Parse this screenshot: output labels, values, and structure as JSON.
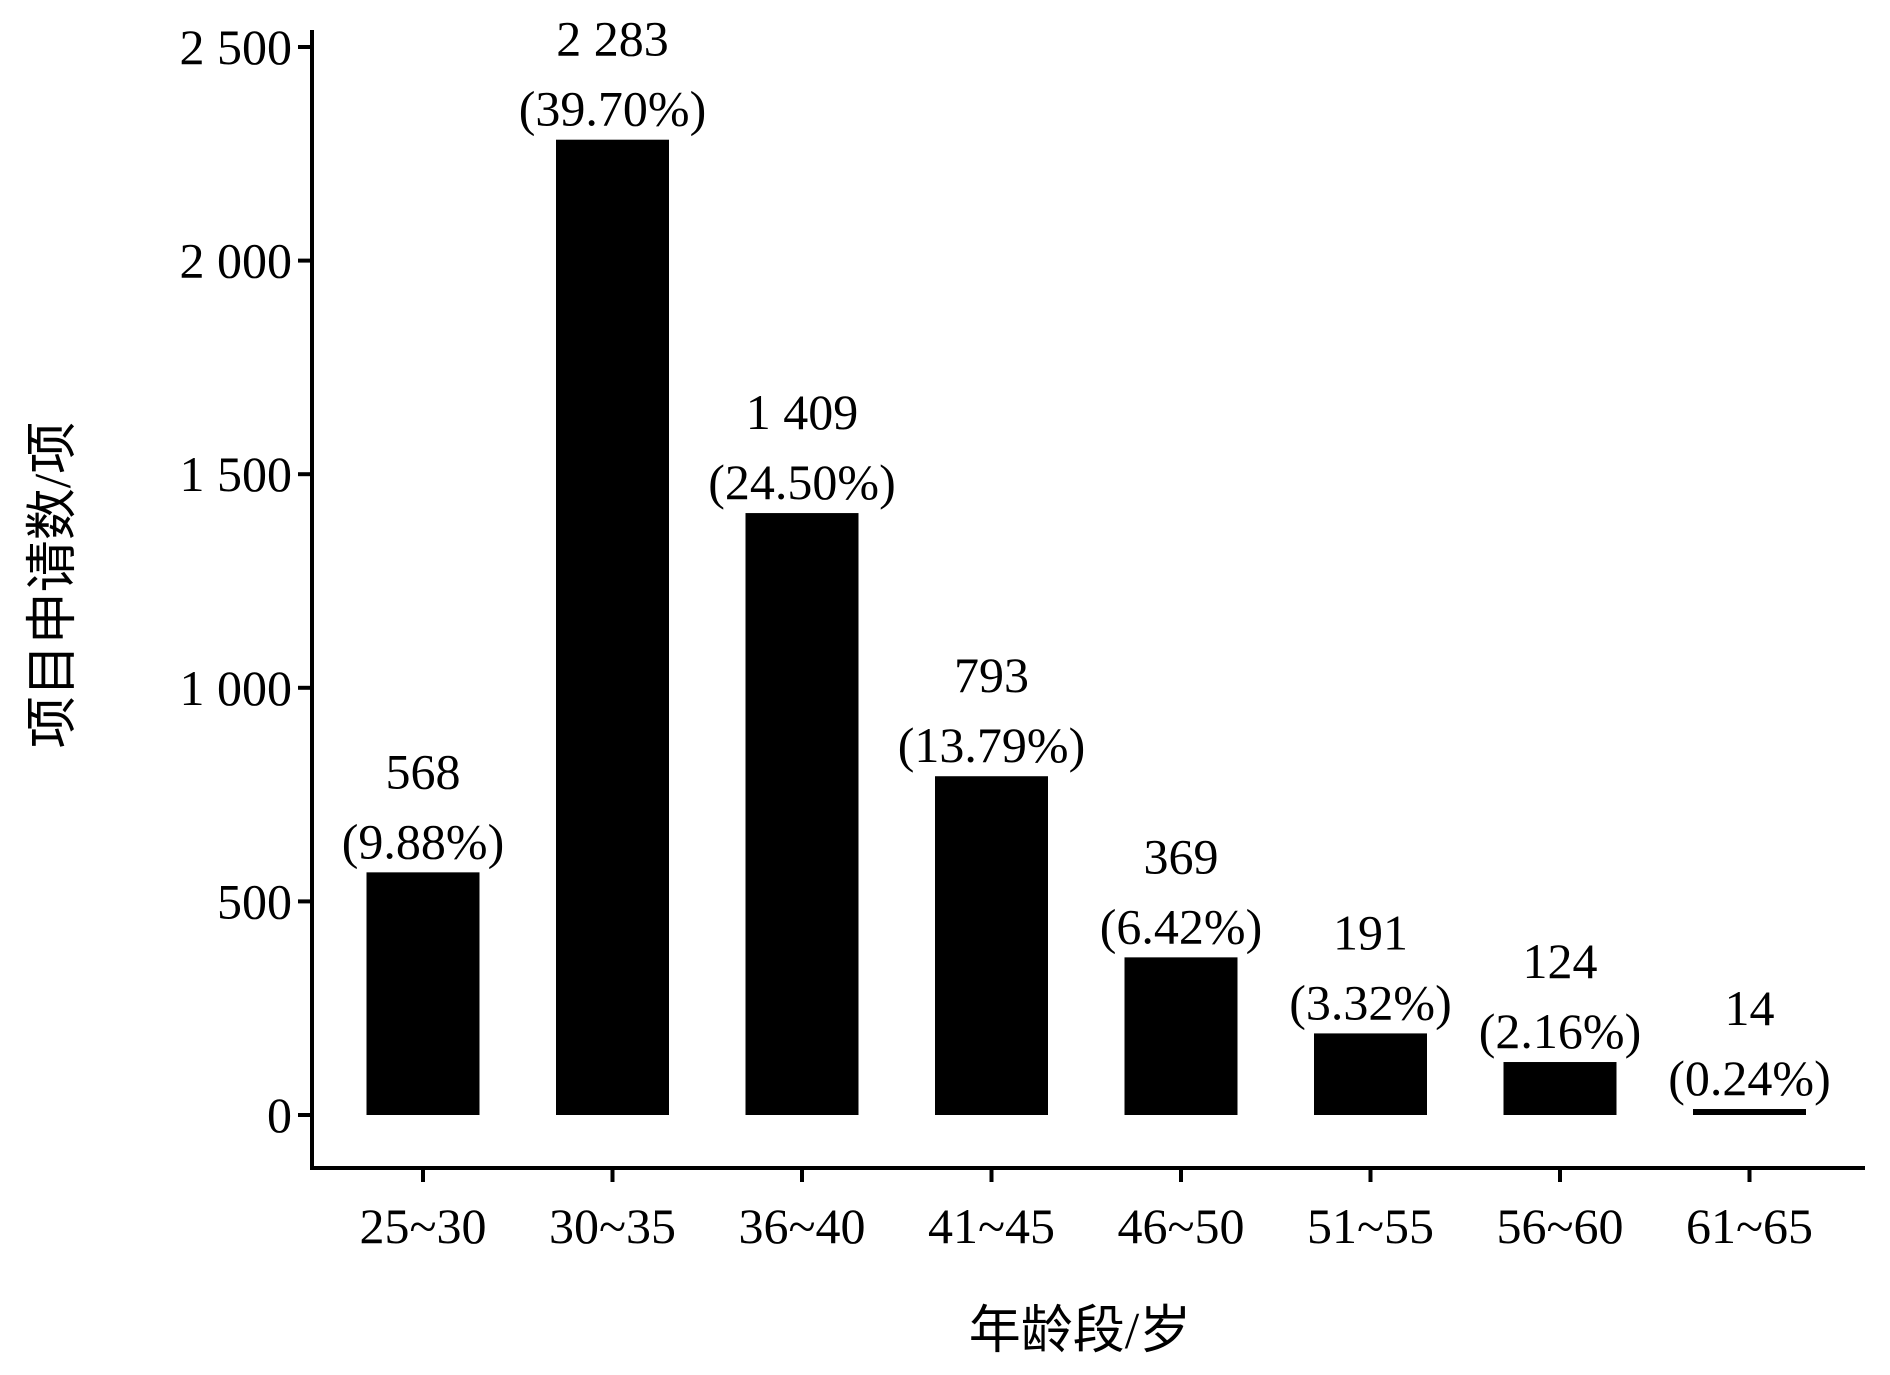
{
  "chart_data": {
    "type": "bar",
    "title": "",
    "xlabel": "年龄段/岁",
    "ylabel": "项目申请数/项",
    "ylim": [
      0,
      2500
    ],
    "yticks": [
      0,
      500,
      1000,
      1500,
      2000,
      2500
    ],
    "ytick_labels": [
      "0",
      "500",
      "1 000",
      "1 500",
      "2 000",
      "2 500"
    ],
    "categories": [
      "25~30",
      "30~35",
      "36~40",
      "41~45",
      "46~50",
      "51~55",
      "56~60",
      "61~65"
    ],
    "values": [
      568,
      2283,
      1409,
      793,
      369,
      191,
      124,
      14
    ],
    "value_labels": [
      "568",
      "2 283",
      "1 409",
      "793",
      "369",
      "191",
      "124",
      "14"
    ],
    "percent_labels": [
      "(9.88%)",
      "(39.70%)",
      "(24.50%)",
      "(13.79%)",
      "(6.42%)",
      "(3.32%)",
      "(2.16%)",
      "(0.24%)"
    ],
    "grid": false,
    "legend": "none",
    "bar_color": "#000000"
  }
}
